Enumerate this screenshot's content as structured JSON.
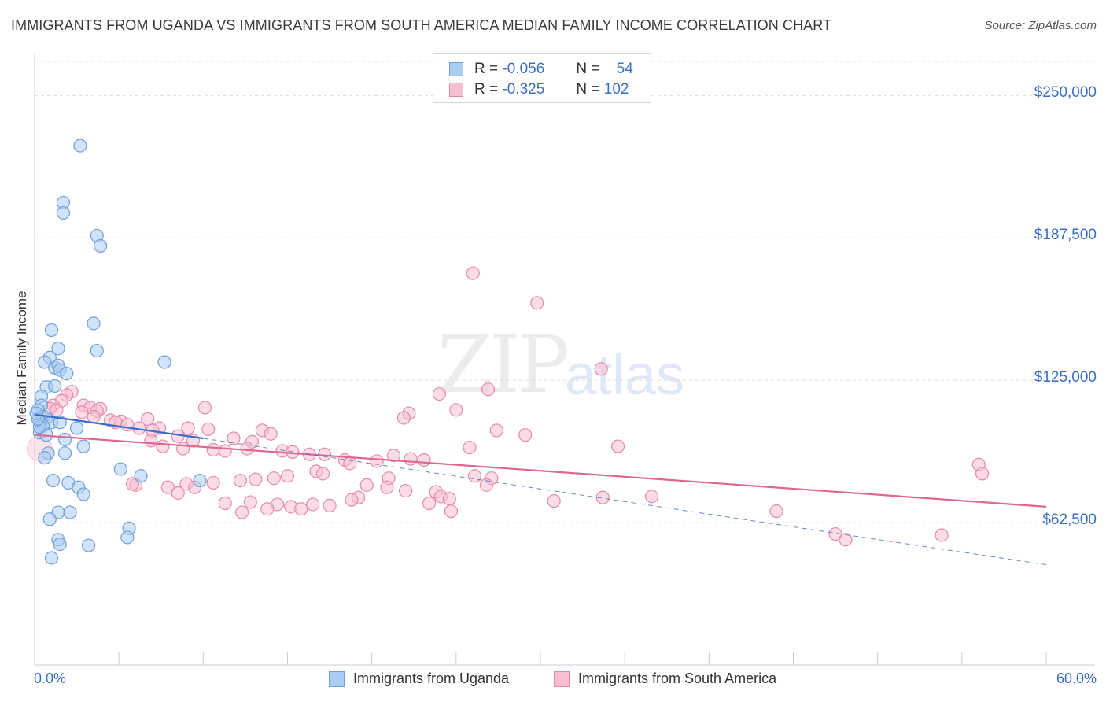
{
  "title": "IMMIGRANTS FROM UGANDA VS IMMIGRANTS FROM SOUTH AMERICA MEDIAN FAMILY INCOME CORRELATION CHART",
  "source": "Source: ZipAtlas.com",
  "watermark": {
    "zip": "ZIP",
    "atlas": "atlas"
  },
  "legend_top": [
    {
      "r_label": "R =",
      "r_value": "-0.056",
      "n_label": "N =",
      "n_value": "54"
    },
    {
      "r_label": "R =",
      "r_value": "-0.325",
      "n_label": "N =",
      "n_value": "102"
    }
  ],
  "colors": {
    "blue_fill": "#aaccf2",
    "blue_stroke": "#6f9fdc",
    "blue_line": "#3a6bc8",
    "pink_fill": "#f7c0d2",
    "pink_stroke": "#e68aa8",
    "pink_line": "#e0658f",
    "tick_text": "#3b6fc4"
  },
  "chart_data": {
    "type": "scatter",
    "title": "IMMIGRANTS FROM UGANDA VS IMMIGRANTS FROM SOUTH AMERICA MEDIAN FAMILY INCOME CORRELATION CHART",
    "xlabel": "",
    "ylabel": "Median Family Income",
    "xlim": [
      0,
      60
    ],
    "ylim": [
      0,
      265000
    ],
    "x_tick_labels": [
      "0.0%",
      "60.0%"
    ],
    "y_ticks": [
      62500,
      125000,
      187500,
      250000
    ],
    "y_tick_labels": [
      "$62,500",
      "$125,000",
      "$187,500",
      "$250,000"
    ],
    "grid": true,
    "series": [
      {
        "name": "Immigrants from Uganda",
        "color": "blue",
        "R": -0.056,
        "N": 54,
        "trend": {
          "x0": 0,
          "y0": 110000,
          "x1": 10,
          "y1": 99500
        },
        "trend_dashed": {
          "x0": 10,
          "y0": 99500,
          "x1": 60,
          "y1": 44000
        },
        "points": [
          [
            2.7,
            228000
          ],
          [
            1.7,
            203000
          ],
          [
            1.7,
            198500
          ],
          [
            3.7,
            188500
          ],
          [
            3.9,
            184000
          ],
          [
            3.5,
            150000
          ],
          [
            1.0,
            147000
          ],
          [
            3.7,
            138000
          ],
          [
            1.4,
            139000
          ],
          [
            0.9,
            135000
          ],
          [
            0.6,
            133000
          ],
          [
            1.2,
            130500
          ],
          [
            1.4,
            131500
          ],
          [
            1.5,
            129500
          ],
          [
            1.9,
            128000
          ],
          [
            7.7,
            133000
          ],
          [
            0.7,
            122000
          ],
          [
            1.2,
            122500
          ],
          [
            0.4,
            118000
          ],
          [
            0.4,
            114000
          ],
          [
            0.2,
            112000
          ],
          [
            0.5,
            109000
          ],
          [
            0.7,
            108500
          ],
          [
            0.3,
            107000
          ],
          [
            1.0,
            106500
          ],
          [
            1.5,
            106500
          ],
          [
            0.5,
            105000
          ],
          [
            2.5,
            104000
          ],
          [
            0.3,
            102000
          ],
          [
            0.7,
            101000
          ],
          [
            1.8,
            99000
          ],
          [
            2.9,
            96000
          ],
          [
            0.8,
            93000
          ],
          [
            1.8,
            93000
          ],
          [
            0.6,
            91000
          ],
          [
            5.1,
            86000
          ],
          [
            6.3,
            83000
          ],
          [
            9.8,
            81000
          ],
          [
            1.1,
            81000
          ],
          [
            2.0,
            80000
          ],
          [
            2.6,
            78000
          ],
          [
            2.9,
            75000
          ],
          [
            1.4,
            67000
          ],
          [
            2.1,
            67000
          ],
          [
            0.9,
            64000
          ],
          [
            5.6,
            60000
          ],
          [
            1.4,
            55000
          ],
          [
            1.5,
            53000
          ],
          [
            5.5,
            56000
          ],
          [
            3.2,
            52500
          ],
          [
            1.0,
            47000
          ],
          [
            0.3,
            104500
          ],
          [
            0.2,
            108000
          ],
          [
            0.1,
            110500
          ]
        ]
      },
      {
        "name": "Immigrants from South America",
        "color": "pink",
        "R": -0.325,
        "N": 102,
        "trend": {
          "x0": 0,
          "y0": 101000,
          "x1": 60,
          "y1": 69500
        },
        "points": [
          [
            26.0,
            172000
          ],
          [
            29.8,
            159000
          ],
          [
            33.6,
            130000
          ],
          [
            26.9,
            121000
          ],
          [
            24.0,
            119000
          ],
          [
            25.0,
            112000
          ],
          [
            22.2,
            110500
          ],
          [
            21.9,
            108500
          ],
          [
            10.1,
            113000
          ],
          [
            2.2,
            120000
          ],
          [
            1.9,
            118500
          ],
          [
            1.6,
            116000
          ],
          [
            1.1,
            114000
          ],
          [
            0.9,
            112500
          ],
          [
            1.3,
            112000
          ],
          [
            2.9,
            114000
          ],
          [
            3.3,
            113000
          ],
          [
            3.9,
            112500
          ],
          [
            3.7,
            111500
          ],
          [
            2.8,
            111000
          ],
          [
            3.5,
            109000
          ],
          [
            4.5,
            107500
          ],
          [
            5.1,
            107000
          ],
          [
            6.7,
            108000
          ],
          [
            4.8,
            106500
          ],
          [
            5.5,
            105500
          ],
          [
            6.2,
            104000
          ],
          [
            7.4,
            104000
          ],
          [
            9.1,
            104000
          ],
          [
            10.3,
            103500
          ],
          [
            7.0,
            103000
          ],
          [
            13.5,
            103000
          ],
          [
            14.0,
            101500
          ],
          [
            27.4,
            103000
          ],
          [
            29.1,
            101000
          ],
          [
            8.5,
            100500
          ],
          [
            9.4,
            98500
          ],
          [
            11.8,
            99500
          ],
          [
            12.9,
            98000
          ],
          [
            6.9,
            98500
          ],
          [
            7.6,
            96000
          ],
          [
            8.8,
            95000
          ],
          [
            10.6,
            94500
          ],
          [
            11.3,
            94000
          ],
          [
            12.6,
            95000
          ],
          [
            14.7,
            94000
          ],
          [
            15.3,
            93500
          ],
          [
            16.3,
            92500
          ],
          [
            17.2,
            92500
          ],
          [
            18.4,
            90000
          ],
          [
            20.3,
            89500
          ],
          [
            21.3,
            92000
          ],
          [
            22.3,
            90500
          ],
          [
            23.1,
            90000
          ],
          [
            25.8,
            95500
          ],
          [
            34.6,
            96000
          ],
          [
            26.1,
            83000
          ],
          [
            27.1,
            82000
          ],
          [
            21.0,
            82000
          ],
          [
            18.7,
            88500
          ],
          [
            16.7,
            85000
          ],
          [
            17.1,
            84000
          ],
          [
            15.0,
            83000
          ],
          [
            14.2,
            82000
          ],
          [
            13.1,
            81500
          ],
          [
            12.2,
            81000
          ],
          [
            10.6,
            80000
          ],
          [
            9.0,
            79500
          ],
          [
            7.9,
            78000
          ],
          [
            6.0,
            79000
          ],
          [
            19.7,
            79000
          ],
          [
            20.9,
            78000
          ],
          [
            22.0,
            76500
          ],
          [
            23.8,
            76000
          ],
          [
            24.1,
            74000
          ],
          [
            24.6,
            73000
          ],
          [
            19.2,
            73500
          ],
          [
            18.8,
            72500
          ],
          [
            17.5,
            70000
          ],
          [
            15.2,
            69500
          ],
          [
            11.3,
            71000
          ],
          [
            12.8,
            71500
          ],
          [
            14.4,
            70500
          ],
          [
            13.8,
            68500
          ],
          [
            12.3,
            67000
          ],
          [
            15.8,
            68500
          ],
          [
            16.5,
            70500
          ],
          [
            9.5,
            78000
          ],
          [
            8.5,
            75500
          ],
          [
            5.8,
            79500
          ],
          [
            23.4,
            71000
          ],
          [
            24.7,
            67500
          ],
          [
            30.8,
            72000
          ],
          [
            33.7,
            73500
          ],
          [
            36.6,
            74000
          ],
          [
            44.0,
            67500
          ],
          [
            47.5,
            57500
          ],
          [
            48.1,
            55000
          ],
          [
            53.8,
            57000
          ],
          [
            56.0,
            88000
          ],
          [
            56.2,
            84000
          ],
          [
            26.8,
            79000
          ]
        ]
      }
    ]
  },
  "bottom_legend": [
    {
      "label": "Immigrants from Uganda"
    },
    {
      "label": "Immigrants from South America"
    }
  ]
}
